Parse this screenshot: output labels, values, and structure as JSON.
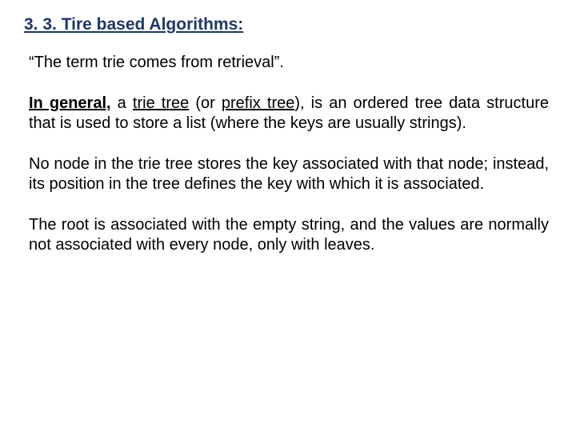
{
  "colors": {
    "heading": "#1f3864",
    "body": "#000000",
    "background": "#ffffff"
  },
  "fonts": {
    "family": "Arial",
    "heading_size_pt": 21,
    "body_size_pt": 20,
    "heading_weight": "bold"
  },
  "heading": "3. 3. Tire based Algorithms:",
  "p1": "“The term trie comes from retrieval”.",
  "p2_lead": "In general,",
  "p2_mid1": " a ",
  "p2_trie": "trie tree",
  "p2_mid2": " (or ",
  "p2_prefix": "prefix tree",
  "p2_tail": "), is an ordered tree data structure that is used to store a list (where the keys are usually strings).",
  "p3": "No node in the trie tree stores the key associated with that node; instead, its position in the tree defines the key with which it is associated.",
  "p4": "The root is associated with the empty string, and the values are normally not associated with every node, only with leaves."
}
